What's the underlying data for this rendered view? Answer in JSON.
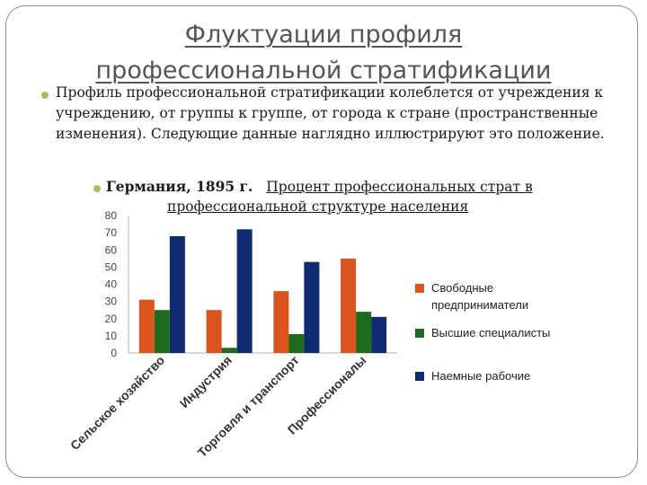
{
  "slide": {
    "title_line1": "Флуктуации профиля",
    "title_line2": "профессиональной стратификации",
    "bullet_text": "Профиль профессиональной стратификации колеблется от учреждения к учреждению, от группы к группе, от города к стране (пространственные изменения). Следующие данные наглядно иллюстрируют это положение.",
    "sub_bullet_bold": "Германия, 1895 г.",
    "sub_bullet_title_part1": "Процент профессиональных страт в",
    "sub_bullet_title_part2": "профессиональной структуре населения"
  },
  "colors": {
    "bullet": "#a9bd5a",
    "series": [
      "#d9541e",
      "#1e6b1e",
      "#0f2a6e"
    ]
  },
  "chart_data": {
    "type": "bar",
    "categories": [
      "Сельское хозяйство",
      "Индустрия",
      "Торговля и транспорт",
      "Профессионалы"
    ],
    "series": [
      {
        "name": "Свободные предприниматели",
        "values": [
          31,
          25,
          36,
          55
        ]
      },
      {
        "name": "Высшие специалисты",
        "values": [
          25,
          3,
          11,
          24
        ]
      },
      {
        "name": "Наемные рабочие",
        "values": [
          68,
          72,
          53,
          21
        ]
      }
    ],
    "ylim": [
      0,
      80
    ],
    "yticks": [
      "0",
      "10",
      "20",
      "30",
      "40",
      "50",
      "60",
      "70",
      "80"
    ],
    "grid": false,
    "legend_position": "right"
  }
}
